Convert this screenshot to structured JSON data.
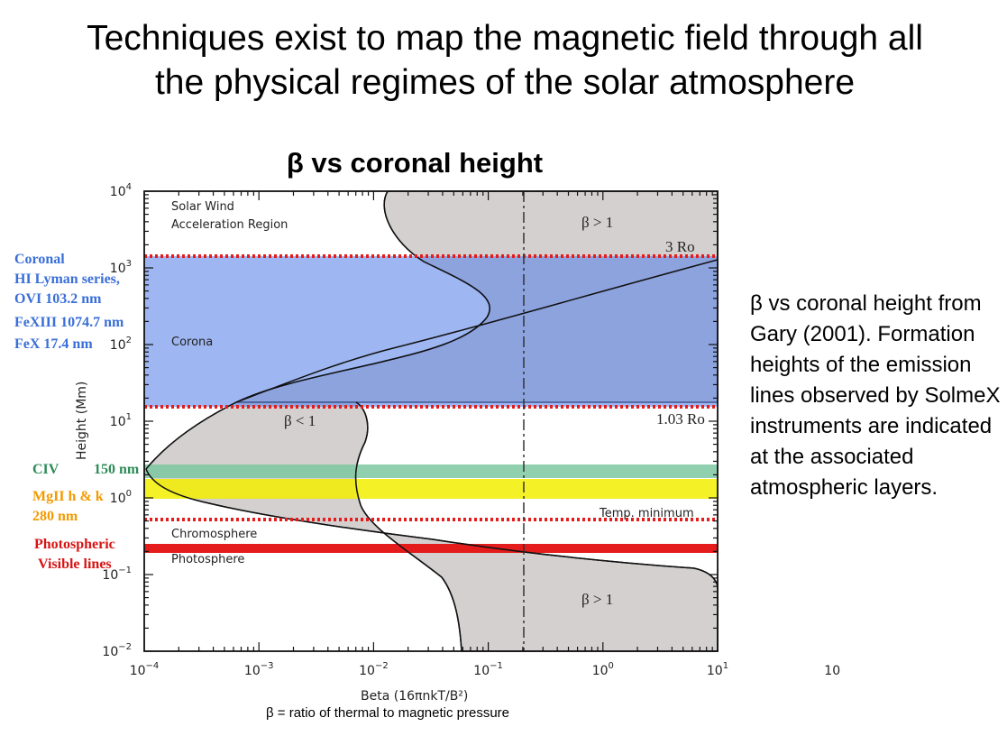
{
  "slide": {
    "title_line1": "Techniques exist to map the magnetic field through all",
    "title_line2": "the physical regimes of the solar atmosphere",
    "chart_title": "β vs coronal height",
    "side_note": "β vs coronal height from Gary (2001). Formation heights of the emission lines observed by SolmeX instruments are indicated at the associated atmospheric layers.",
    "footnote": "β = ratio of thermal to magnetic pressure"
  },
  "left_labels": {
    "coronal_1": "Coronal",
    "coronal_2": "HI Lyman series,",
    "coronal_3": "OVI 103.2 nm",
    "coronal_4": "FeXIII 1074.7 nm",
    "coronal_5": "FeX 17.4 nm",
    "civ_a": "CIV",
    "civ_b": "150 nm",
    "mgii_1": "MgII h & k",
    "mgii_2": "280 nm",
    "photo_1": "Photospheric",
    "photo_2": "Visible lines"
  },
  "plot_text": {
    "solar_wind_1": "Solar Wind",
    "solar_wind_2": "Acceleration Region",
    "corona": "Corona",
    "chromosphere": "Chromosphere",
    "photosphere": "Photosphere",
    "temp_min": "Temp. minimum",
    "beta_gt_top": "β > 1",
    "beta_gt_bottom": "β > 1",
    "beta_lt": "β < 1",
    "r3": "3 Ro",
    "r103": "1.03 Ro",
    "ylabel": "Height (Mm)",
    "xlabel": "Beta (16πnkT/B²)"
  },
  "chart_data": {
    "type": "area",
    "x_scale": "log",
    "y_scale": "log",
    "xlim": [
      0.0001,
      10
    ],
    "ylim": [
      0.01,
      10000
    ],
    "x_ticks": [
      {
        "base": "10",
        "exp": "−4"
      },
      {
        "base": "10",
        "exp": "−3"
      },
      {
        "base": "10",
        "exp": "−2"
      },
      {
        "base": "10",
        "exp": "−1"
      },
      {
        "base": "10",
        "exp": "0"
      },
      {
        "base": "10",
        "exp": "1"
      },
      {
        "base": "10",
        "exp": ""
      }
    ],
    "y_ticks": [
      {
        "base": "10",
        "exp": "−2"
      },
      {
        "base": "10",
        "exp": "−1"
      },
      {
        "base": "10",
        "exp": "0"
      },
      {
        "base": "10",
        "exp": "1"
      },
      {
        "base": "10",
        "exp": "2"
      },
      {
        "base": "10",
        "exp": "3"
      },
      {
        "base": "10",
        "exp": "4"
      }
    ],
    "reference_line_beta": 1,
    "colors": {
      "shade": "#d4d0d0",
      "corona_band": "#5e86e8",
      "civ_band": "#7cc8a0",
      "mgii_band": "#f2ee00",
      "photosphere_band": "#e41c1c",
      "dotted_red": "#e41c1c"
    }
  }
}
